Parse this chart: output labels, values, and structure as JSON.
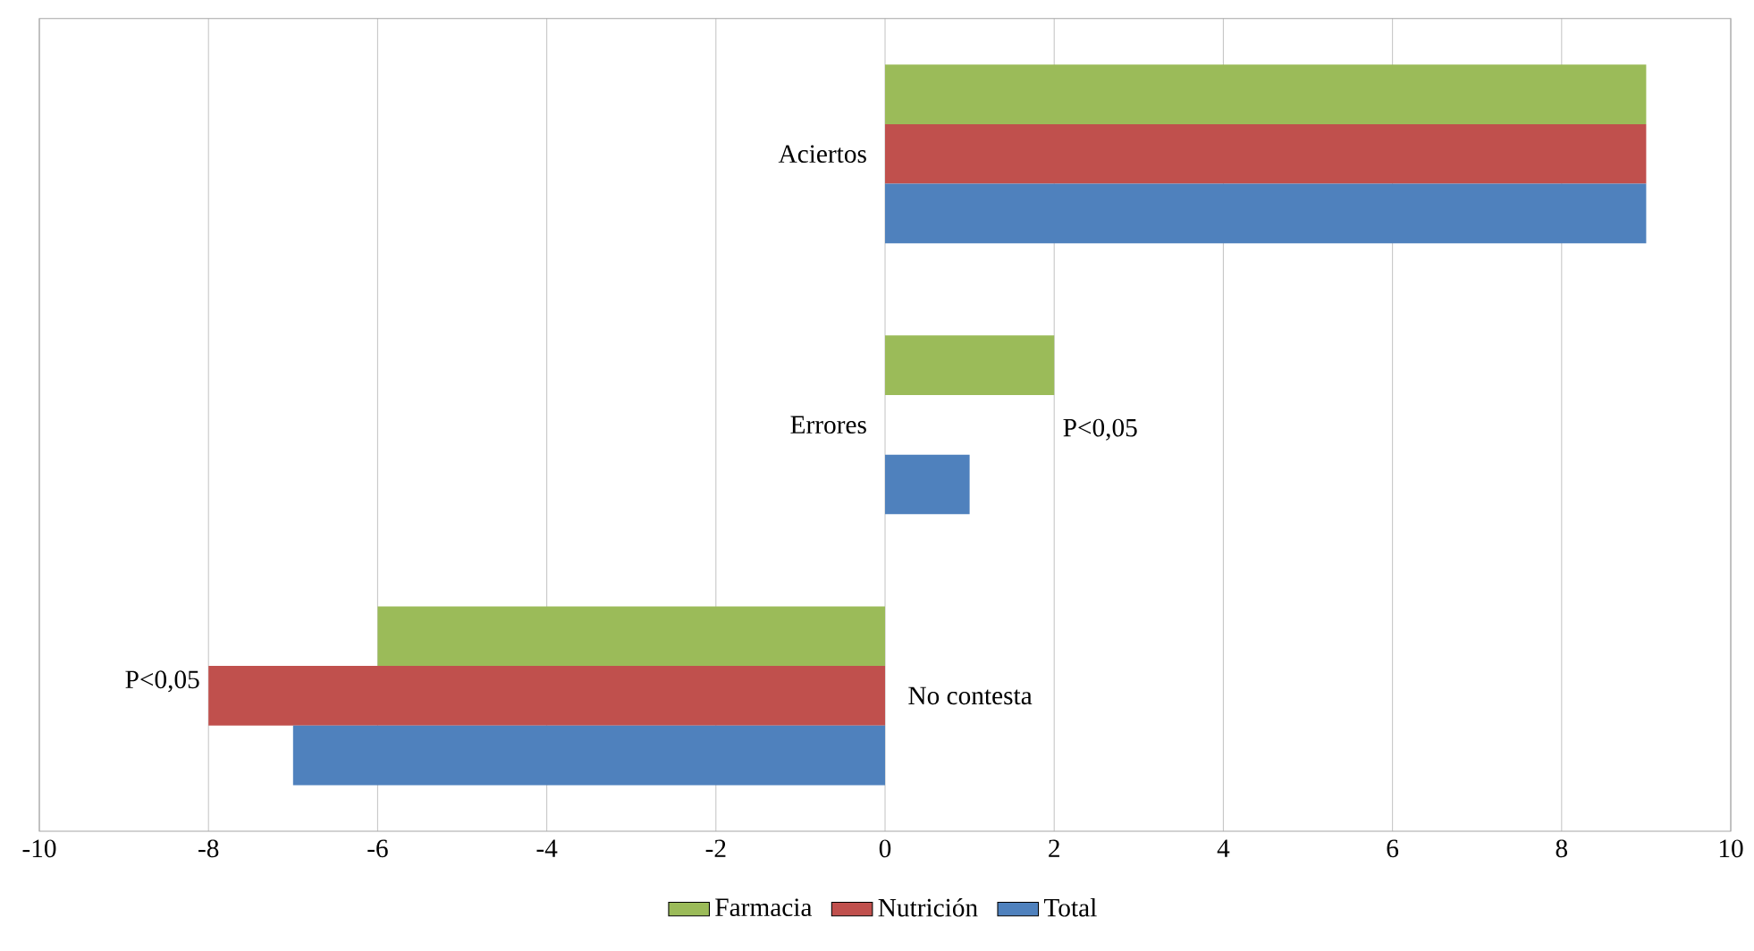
{
  "chart_data": {
    "type": "bar",
    "orientation": "horizontal",
    "categories": [
      "Aciertos",
      "Errores",
      "No contesta"
    ],
    "series": [
      {
        "name": "Farmacia",
        "color": "#9bbb59",
        "values": [
          9,
          2,
          -6
        ]
      },
      {
        "name": "Nutrición",
        "color": "#c0504d",
        "values": [
          9,
          0,
          -8
        ]
      },
      {
        "name": "Total",
        "color": "#4f81bd",
        "values": [
          9,
          1,
          -7
        ]
      }
    ],
    "xlim": [
      -10,
      10
    ],
    "xticks": [
      -10,
      -8,
      -6,
      -4,
      -2,
      0,
      2,
      4,
      6,
      8,
      10
    ],
    "grid": "x",
    "legend": "bottom",
    "annotations": [
      "P<0,05",
      {
        "text": "P<0,05",
        "x": -8,
        "y": "No contesta"
      }
    ]
  }
}
